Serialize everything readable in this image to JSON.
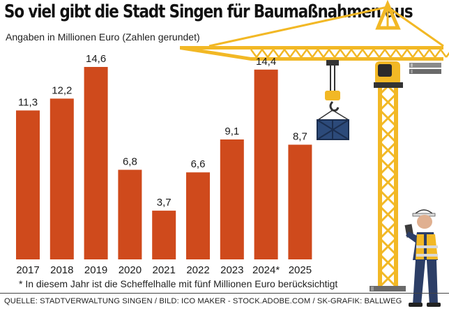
{
  "title": "So viel gibt die Stadt Singen für Baumaßnahmen aus",
  "subtitle": "Angaben in Millionen Euro (Zahlen gerundet)",
  "footnote": "* In diesem Jahr ist die Scheffelhalle mit fünf Millionen Euro berücksichtigt",
  "source": "QUELLE: STADTVERWALTUNG SINGEN / BILD: ICO MAKER - STOCK.ADOBE.COM / SK-GRAFIK: BALLWEG",
  "colors": {
    "bar": "#cf4a1c",
    "crane": "#f2b825",
    "crane_dark": "#333333",
    "worker_vest": "#f2b825",
    "worker_suit": "#2c3e66",
    "container": "#2c4a7a"
  },
  "illustration": {
    "objects": [
      "tower-crane",
      "construction-worker",
      "cargo-container"
    ]
  },
  "chart_data": {
    "type": "bar",
    "title": "So viel gibt die Stadt Singen für Baumaßnahmen aus",
    "subtitle": "Angaben in Millionen Euro (Zahlen gerundet)",
    "categories": [
      "2017",
      "2018",
      "2019",
      "2020",
      "2021",
      "2022",
      "2023",
      "2024*",
      "2025"
    ],
    "values": [
      11.3,
      12.2,
      14.6,
      6.8,
      3.7,
      6.6,
      9.1,
      14.4,
      8.7
    ],
    "value_labels": [
      "11,3",
      "12,2",
      "14,6",
      "6,8",
      "3,7",
      "6,6",
      "9,1",
      "14,4",
      "8,7"
    ],
    "xlabel": "",
    "ylabel": "",
    "ylim": [
      0,
      14.6
    ],
    "grid": false,
    "legend": "none"
  }
}
